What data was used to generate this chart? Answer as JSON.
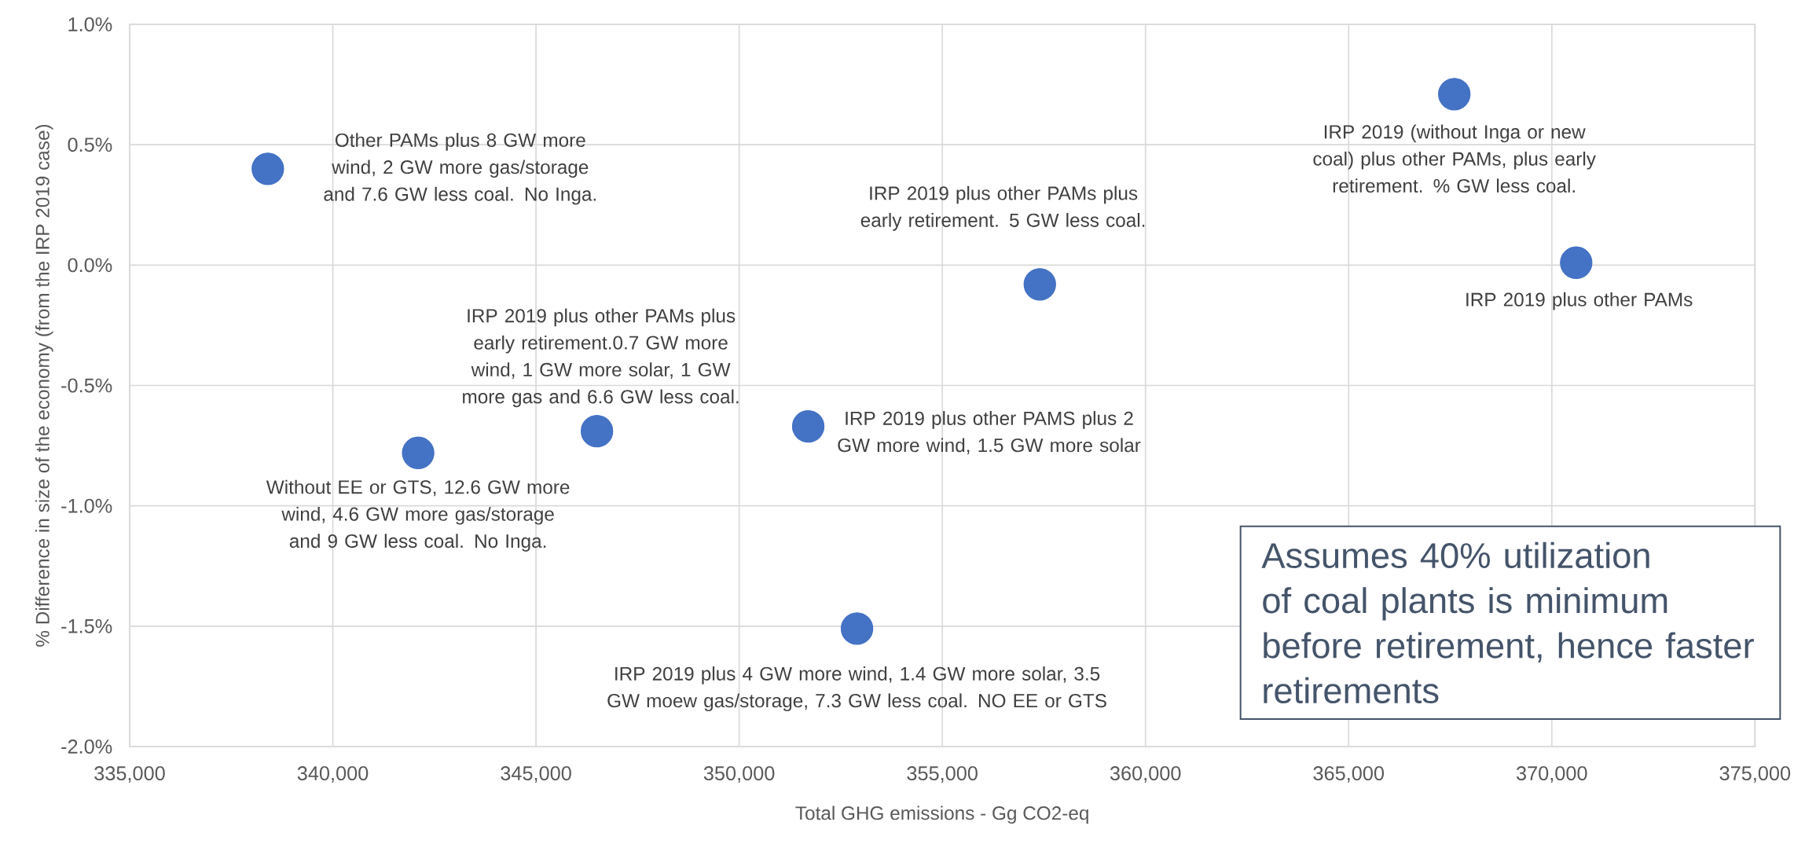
{
  "chart_data": {
    "type": "scatter",
    "xlabel": "Total GHG emissions - Gg CO2-eq",
    "ylabel": "% Difference in size of the economy (from the IRP 2019 case)",
    "x": [
      338400,
      342100,
      346500,
      351700,
      352900,
      357400,
      367600,
      370600
    ],
    "values": [
      0.4,
      -0.78,
      -0.69,
      -0.67,
      -1.51,
      -0.08,
      0.71,
      0.01
    ],
    "color": "#4472c4",
    "marker": "circle",
    "grid": true,
    "xlim": [
      335000,
      375000
    ],
    "ylim": [
      -2.0,
      1.0
    ],
    "xticks": [
      {
        "value": 335000,
        "label": "335,000"
      },
      {
        "value": 340000,
        "label": "340,000"
      },
      {
        "value": 345000,
        "label": "345,000"
      },
      {
        "value": 350000,
        "label": "350,000"
      },
      {
        "value": 355000,
        "label": "355,000"
      },
      {
        "value": 360000,
        "label": "360,000"
      },
      {
        "value": 365000,
        "label": "365,000"
      },
      {
        "value": 370000,
        "label": "370,000"
      },
      {
        "value": 375000,
        "label": "375,000"
      }
    ],
    "yticks": [
      {
        "value": -2.0,
        "label": "-2.0%"
      },
      {
        "value": -1.5,
        "label": "-1.5%"
      },
      {
        "value": -1.0,
        "label": "-1.0%"
      },
      {
        "value": -0.5,
        "label": "-0.5%"
      },
      {
        "value": 0.0,
        "label": "0.0%"
      },
      {
        "value": 0.5,
        "label": "0.5%"
      },
      {
        "value": 1.0,
        "label": "1.0%"
      }
    ],
    "annotations": [
      {
        "text": "Other PAMs plus 8 GW more wind, 2 GW more gas/storage and 7.6 GW less coal. No Inga.",
        "x": 338400,
        "y": 0.4
      },
      {
        "text": "Without EE or GTS, 12.6 GW more wind, 4.6 GW more gas/storage and 9 GW less coal. No Inga.",
        "x": 342100,
        "y": -0.78
      },
      {
        "text": "IRP 2019 plus other PAMs plus early retirement.0.7 GW more wind, 1 GW more solar, 1 GW more gas and 6.6 GW less coal.",
        "x": 346500,
        "y": -0.69
      },
      {
        "text": "IRP 2019 plus other PAMS plus 2 GW more wind, 1.5 GW more solar",
        "x": 351700,
        "y": -0.67
      },
      {
        "text": "IRP 2019 plus 4 GW more wind, 1.4 GW more solar, 3.5 GW moew gas/storage, 7.3 GW less coal. NO EE or GTS",
        "x": 352900,
        "y": -1.51
      },
      {
        "text": "IRP 2019 plus other PAMs plus early retirement. 5 GW less coal.",
        "x": 357400,
        "y": -0.08
      },
      {
        "text": "IRP 2019 (without Inga or new coal) plus other PAMs, plus early retirement. % GW less coal.",
        "x": 367600,
        "y": 0.71
      },
      {
        "text": "IRP 2019 plus other PAMs",
        "x": 370600,
        "y": 0.01
      },
      "Assumes 40% utilization of coal plants is minimum before retirement, hence faster retirements"
    ]
  }
}
